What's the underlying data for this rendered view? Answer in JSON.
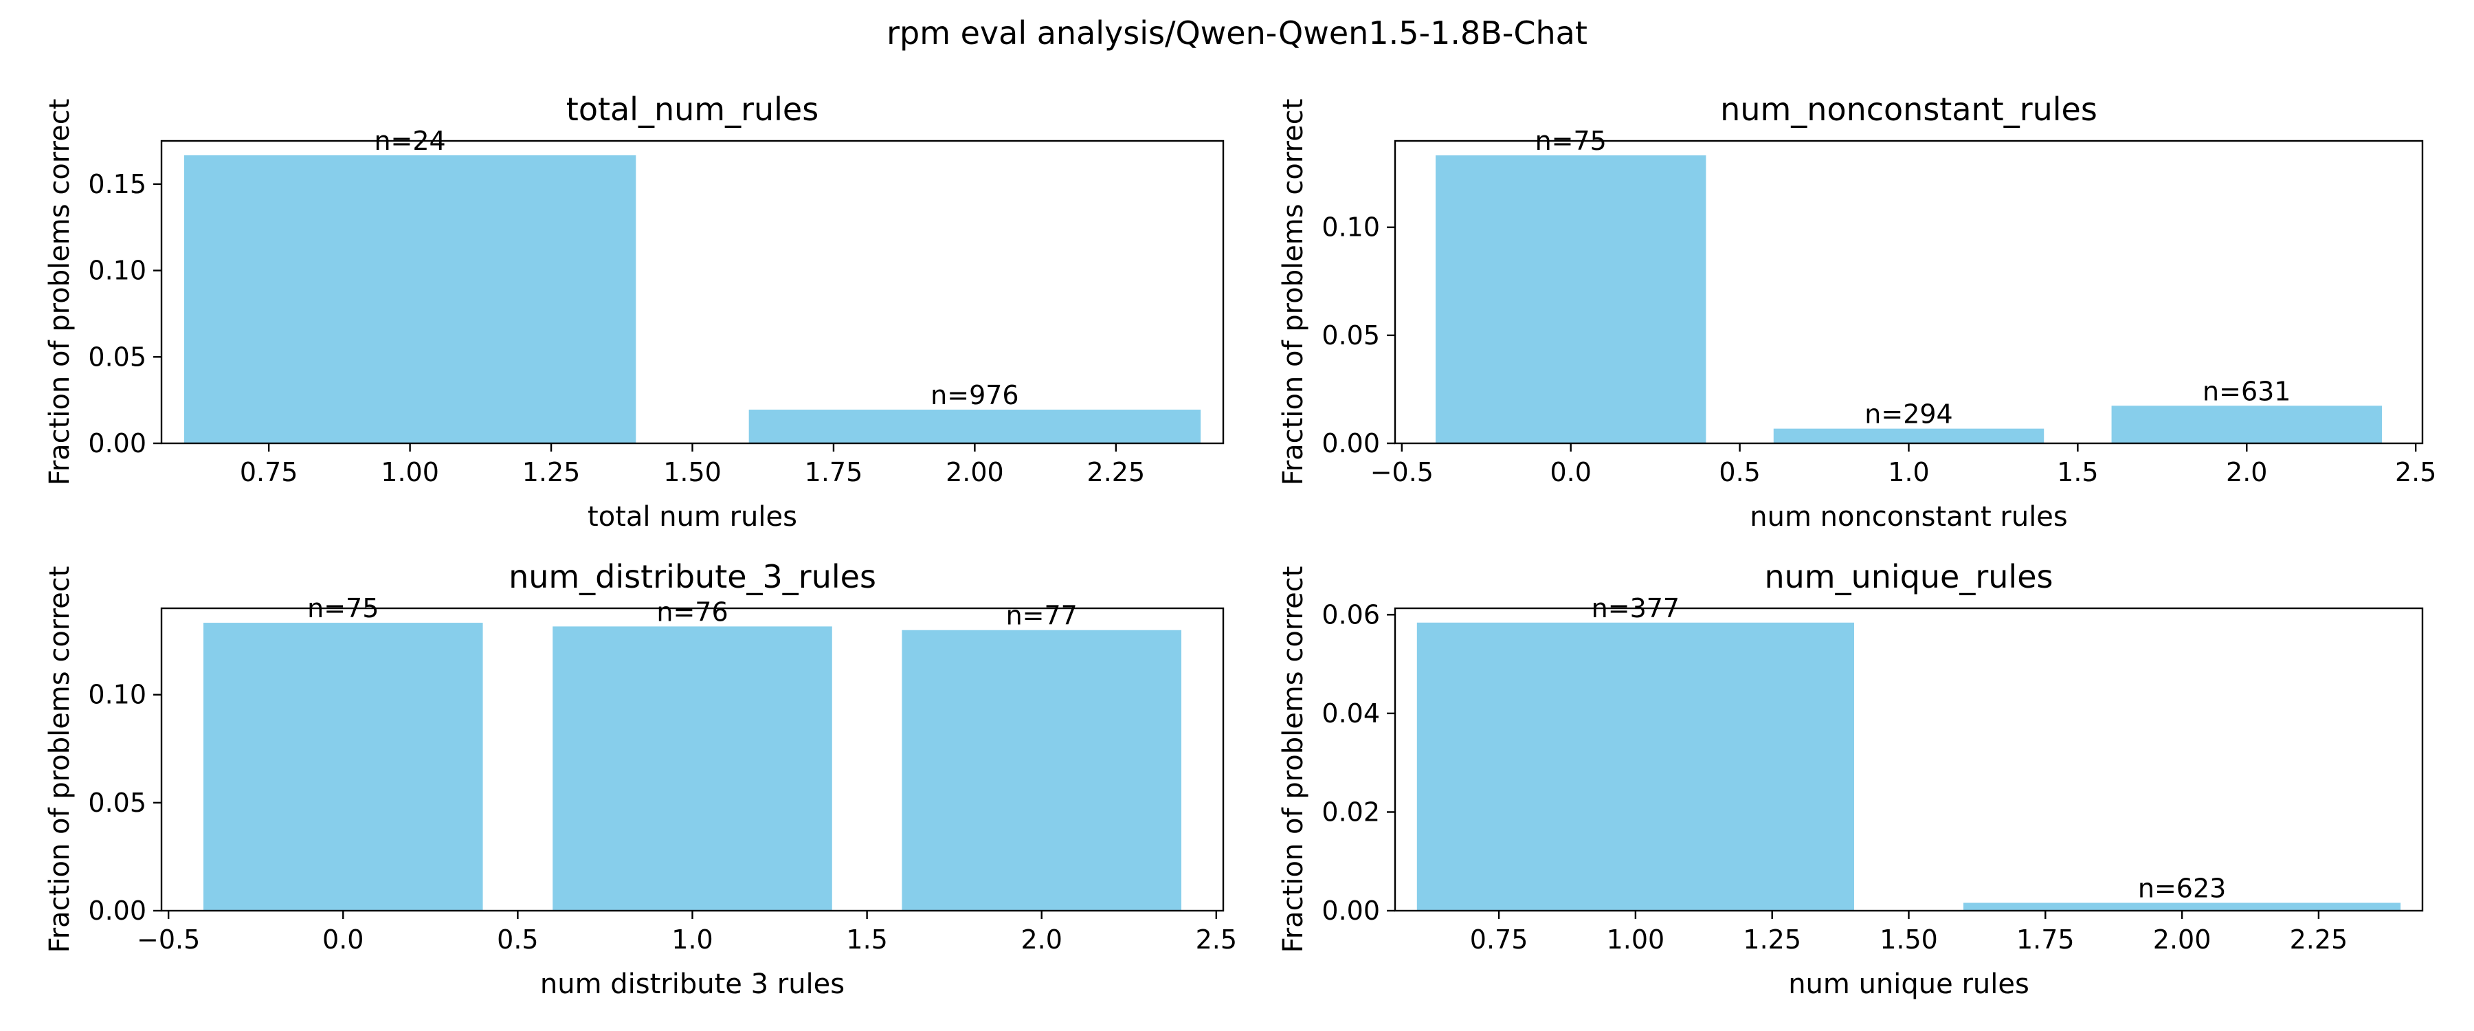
{
  "figure": {
    "title": "rpm eval analysis/Qwen-Qwen1.5-1.8B-Chat",
    "bar_color": "#87ceeb"
  },
  "chart_data": [
    {
      "type": "bar",
      "title": "total_num_rules",
      "xlabel": "total num rules",
      "ylabel": "Fraction of problems correct",
      "x": [
        1,
        2
      ],
      "values": [
        0.1667,
        0.0195
      ],
      "bar_labels": [
        "n=24",
        "n=976"
      ],
      "xlim": [
        0.56,
        2.44
      ],
      "ylim": [
        0,
        0.175
      ],
      "xticks": [
        0.75,
        1.0,
        1.25,
        1.5,
        1.75,
        2.0,
        2.25
      ],
      "xtick_labels": [
        "0.75",
        "1.00",
        "1.25",
        "1.50",
        "1.75",
        "2.00",
        "2.25"
      ],
      "yticks": [
        0.0,
        0.05,
        0.1,
        0.15
      ],
      "ytick_labels": [
        "0.00",
        "0.05",
        "0.10",
        "0.15"
      ]
    },
    {
      "type": "bar",
      "title": "num_nonconstant_rules",
      "xlabel": "num nonconstant rules",
      "ylabel": "Fraction of problems correct",
      "x": [
        0,
        1,
        2
      ],
      "values": [
        0.1333,
        0.0068,
        0.0174
      ],
      "bar_labels": [
        "n=75",
        "n=294",
        "n=631"
      ],
      "xlim": [
        -0.52,
        2.52
      ],
      "ylim": [
        0,
        0.14
      ],
      "xticks": [
        -0.5,
        0.0,
        0.5,
        1.0,
        1.5,
        2.0,
        2.5
      ],
      "xtick_labels": [
        "−0.5",
        "0.0",
        "0.5",
        "1.0",
        "1.5",
        "2.0",
        "2.5"
      ],
      "yticks": [
        0.0,
        0.05,
        0.1
      ],
      "ytick_labels": [
        "0.00",
        "0.05",
        "0.10"
      ]
    },
    {
      "type": "bar",
      "title": "num_distribute_3_rules",
      "xlabel": "num distribute 3 rules",
      "ylabel": "Fraction of problems correct",
      "x": [
        0,
        1,
        2
      ],
      "values": [
        0.1333,
        0.1316,
        0.1299
      ],
      "bar_labels": [
        "n=75",
        "n=76",
        "n=77"
      ],
      "xlim": [
        -0.52,
        2.52
      ],
      "ylim": [
        0,
        0.14
      ],
      "xticks": [
        -0.5,
        0.0,
        0.5,
        1.0,
        1.5,
        2.0,
        2.5
      ],
      "xtick_labels": [
        "−0.5",
        "0.0",
        "0.5",
        "1.0",
        "1.5",
        "2.0",
        "2.5"
      ],
      "yticks": [
        0.0,
        0.05,
        0.1
      ],
      "ytick_labels": [
        "0.00",
        "0.05",
        "0.10"
      ]
    },
    {
      "type": "bar",
      "title": "num_unique_rules",
      "xlabel": "num unique rules",
      "ylabel": "Fraction of problems correct",
      "x": [
        1,
        2
      ],
      "values": [
        0.0584,
        0.0016
      ],
      "bar_labels": [
        "n=377",
        "n=623"
      ],
      "xlim": [
        0.56,
        2.44
      ],
      "ylim": [
        0,
        0.0613
      ],
      "xticks": [
        0.75,
        1.0,
        1.25,
        1.5,
        1.75,
        2.0,
        2.25
      ],
      "xtick_labels": [
        "0.75",
        "1.00",
        "1.25",
        "1.50",
        "1.75",
        "2.00",
        "2.25"
      ],
      "yticks": [
        0.0,
        0.02,
        0.04,
        0.06
      ],
      "ytick_labels": [
        "0.00",
        "0.02",
        "0.04",
        "0.06"
      ]
    }
  ]
}
